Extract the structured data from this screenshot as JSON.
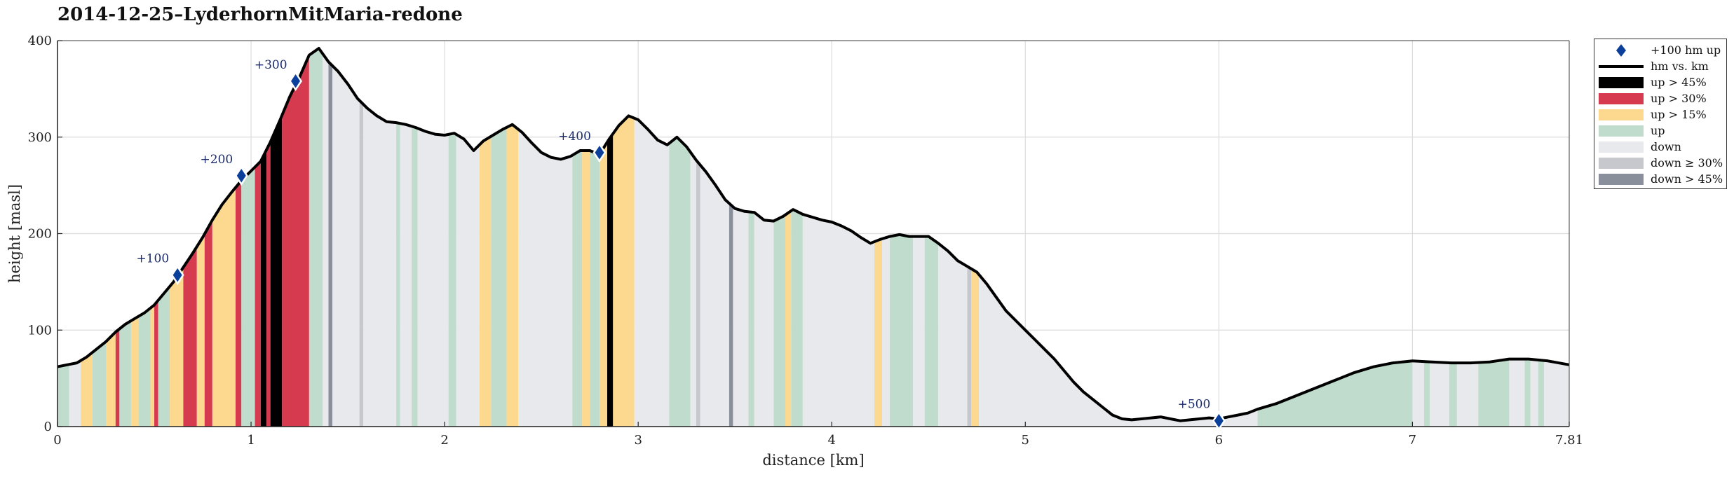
{
  "title": "2014-12-25–LyderhornMitMaria-redone",
  "chart_data": {
    "type": "area",
    "title": "2014-12-25–LyderhornMitMaria-redone",
    "xlabel": "distance [km]",
    "ylabel": "height [masl]",
    "xlim": [
      0,
      7.81
    ],
    "ylim": [
      0,
      400
    ],
    "x_ticks": [
      "0",
      "1",
      "2",
      "3",
      "4",
      "5",
      "6",
      "7",
      "7.81"
    ],
    "y_ticks": [
      "0",
      "100",
      "200",
      "300",
      "400"
    ],
    "grid": true,
    "legend_position": "outside-right-top",
    "series": [
      {
        "name": "hm vs. km",
        "color": "#000000",
        "x": [
          0,
          0.05,
          0.1,
          0.15,
          0.2,
          0.25,
          0.3,
          0.35,
          0.4,
          0.45,
          0.5,
          0.55,
          0.6,
          0.65,
          0.7,
          0.75,
          0.8,
          0.85,
          0.9,
          0.95,
          1.0,
          1.05,
          1.1,
          1.15,
          1.2,
          1.25,
          1.3,
          1.35,
          1.4,
          1.45,
          1.5,
          1.55,
          1.6,
          1.65,
          1.7,
          1.75,
          1.8,
          1.85,
          1.9,
          1.95,
          2.0,
          2.05,
          2.1,
          2.15,
          2.2,
          2.25,
          2.3,
          2.35,
          2.4,
          2.45,
          2.5,
          2.55,
          2.6,
          2.65,
          2.7,
          2.75,
          2.8,
          2.85,
          2.9,
          2.95,
          3.0,
          3.05,
          3.1,
          3.15,
          3.2,
          3.25,
          3.3,
          3.35,
          3.4,
          3.45,
          3.5,
          3.55,
          3.6,
          3.65,
          3.7,
          3.75,
          3.8,
          3.85,
          3.9,
          3.95,
          4.0,
          4.05,
          4.1,
          4.15,
          4.2,
          4.25,
          4.3,
          4.35,
          4.4,
          4.45,
          4.5,
          4.55,
          4.6,
          4.65,
          4.7,
          4.75,
          4.8,
          4.85,
          4.9,
          4.95,
          5.0,
          5.05,
          5.1,
          5.15,
          5.2,
          5.25,
          5.3,
          5.35,
          5.4,
          5.45,
          5.5,
          5.55,
          5.6,
          5.65,
          5.7,
          5.75,
          5.8,
          5.85,
          5.9,
          5.95,
          6.0,
          6.05,
          6.1,
          6.15,
          6.2,
          6.3,
          6.4,
          6.5,
          6.6,
          6.7,
          6.8,
          6.9,
          7.0,
          7.1,
          7.2,
          7.3,
          7.4,
          7.5,
          7.6,
          7.7,
          7.81
        ],
        "y": [
          62,
          64,
          66,
          72,
          80,
          88,
          98,
          106,
          112,
          118,
          126,
          138,
          150,
          165,
          180,
          196,
          214,
          230,
          243,
          255,
          265,
          275,
          295,
          318,
          342,
          362,
          385,
          392,
          378,
          368,
          355,
          340,
          330,
          322,
          316,
          315,
          313,
          310,
          306,
          303,
          302,
          304,
          298,
          286,
          296,
          302,
          308,
          313,
          305,
          294,
          284,
          279,
          277,
          280,
          286,
          286,
          282,
          298,
          312,
          322,
          318,
          308,
          297,
          292,
          300,
          290,
          276,
          264,
          250,
          235,
          226,
          223,
          222,
          214,
          213,
          218,
          225,
          220,
          217,
          214,
          212,
          208,
          203,
          196,
          190,
          194,
          197,
          199,
          197,
          197,
          197,
          190,
          182,
          172,
          166,
          160,
          148,
          134,
          120,
          110,
          100,
          90,
          80,
          70,
          58,
          46,
          36,
          28,
          20,
          12,
          8,
          7,
          8,
          9,
          10,
          8,
          6,
          7,
          8,
          9,
          8,
          10,
          12,
          14,
          18,
          24,
          32,
          40,
          48,
          56,
          62,
          66,
          68,
          67,
          66,
          66,
          67,
          70,
          70,
          68,
          64
        ]
      },
      {
        "name": "+100 hm up",
        "color": "#0b3f9c",
        "type": "scatter",
        "x": [
          0.62,
          0.95,
          1.23,
          2.8,
          6.0
        ],
        "y": [
          157,
          260,
          358,
          284,
          6
        ],
        "labels": [
          "+100",
          "+200",
          "+300",
          "+400",
          "+500"
        ]
      }
    ],
    "bands": [
      {
        "from": 0.0,
        "to": 0.06,
        "category": "up"
      },
      {
        "from": 0.06,
        "to": 0.12,
        "category": "down"
      },
      {
        "from": 0.12,
        "to": 0.18,
        "category": "up > 15%"
      },
      {
        "from": 0.18,
        "to": 0.25,
        "category": "up"
      },
      {
        "from": 0.25,
        "to": 0.3,
        "category": "up > 15%"
      },
      {
        "from": 0.3,
        "to": 0.32,
        "category": "up > 30%"
      },
      {
        "from": 0.32,
        "to": 0.38,
        "category": "up"
      },
      {
        "from": 0.38,
        "to": 0.42,
        "category": "up > 15%"
      },
      {
        "from": 0.42,
        "to": 0.48,
        "category": "up"
      },
      {
        "from": 0.48,
        "to": 0.5,
        "category": "up > 15%"
      },
      {
        "from": 0.5,
        "to": 0.52,
        "category": "up > 30%"
      },
      {
        "from": 0.52,
        "to": 0.58,
        "category": "up"
      },
      {
        "from": 0.58,
        "to": 0.65,
        "category": "up > 15%"
      },
      {
        "from": 0.65,
        "to": 0.72,
        "category": "up > 30%"
      },
      {
        "from": 0.72,
        "to": 0.76,
        "category": "up > 15%"
      },
      {
        "from": 0.76,
        "to": 0.8,
        "category": "up > 30%"
      },
      {
        "from": 0.8,
        "to": 0.92,
        "category": "up > 15%"
      },
      {
        "from": 0.92,
        "to": 0.95,
        "category": "up > 30%"
      },
      {
        "from": 0.95,
        "to": 1.02,
        "category": "up"
      },
      {
        "from": 1.02,
        "to": 1.05,
        "category": "up > 30%"
      },
      {
        "from": 1.05,
        "to": 1.08,
        "category": "up > 45%"
      },
      {
        "from": 1.08,
        "to": 1.1,
        "category": "up > 30%"
      },
      {
        "from": 1.1,
        "to": 1.16,
        "category": "up > 45%"
      },
      {
        "from": 1.16,
        "to": 1.3,
        "category": "up > 30%"
      },
      {
        "from": 1.3,
        "to": 1.37,
        "category": "up"
      },
      {
        "from": 1.37,
        "to": 1.4,
        "category": "down"
      },
      {
        "from": 1.4,
        "to": 1.42,
        "category": "down > 45%"
      },
      {
        "from": 1.42,
        "to": 1.56,
        "category": "down"
      },
      {
        "from": 1.56,
        "to": 1.58,
        "category": "down ≥ 30%"
      },
      {
        "from": 1.58,
        "to": 1.75,
        "category": "down"
      },
      {
        "from": 1.75,
        "to": 1.77,
        "category": "up"
      },
      {
        "from": 1.77,
        "to": 1.83,
        "category": "down"
      },
      {
        "from": 1.83,
        "to": 1.86,
        "category": "up"
      },
      {
        "from": 1.86,
        "to": 2.02,
        "category": "down"
      },
      {
        "from": 2.02,
        "to": 2.06,
        "category": "up"
      },
      {
        "from": 2.06,
        "to": 2.18,
        "category": "down"
      },
      {
        "from": 2.18,
        "to": 2.24,
        "category": "up > 15%"
      },
      {
        "from": 2.24,
        "to": 2.32,
        "category": "up"
      },
      {
        "from": 2.32,
        "to": 2.38,
        "category": "up > 15%"
      },
      {
        "from": 2.38,
        "to": 2.66,
        "category": "down"
      },
      {
        "from": 2.66,
        "to": 2.71,
        "category": "up"
      },
      {
        "from": 2.71,
        "to": 2.75,
        "category": "up > 15%"
      },
      {
        "from": 2.75,
        "to": 2.8,
        "category": "up"
      },
      {
        "from": 2.8,
        "to": 2.84,
        "category": "up > 15%"
      },
      {
        "from": 2.84,
        "to": 2.87,
        "category": "up > 45%"
      },
      {
        "from": 2.87,
        "to": 2.98,
        "category": "up > 15%"
      },
      {
        "from": 2.98,
        "to": 3.16,
        "category": "down"
      },
      {
        "from": 3.16,
        "to": 3.27,
        "category": "up"
      },
      {
        "from": 3.27,
        "to": 3.3,
        "category": "down"
      },
      {
        "from": 3.3,
        "to": 3.32,
        "category": "down ≥ 30%"
      },
      {
        "from": 3.32,
        "to": 3.47,
        "category": "down"
      },
      {
        "from": 3.47,
        "to": 3.49,
        "category": "down > 45%"
      },
      {
        "from": 3.49,
        "to": 3.57,
        "category": "down"
      },
      {
        "from": 3.57,
        "to": 3.6,
        "category": "up"
      },
      {
        "from": 3.6,
        "to": 3.7,
        "category": "down"
      },
      {
        "from": 3.7,
        "to": 3.76,
        "category": "up"
      },
      {
        "from": 3.76,
        "to": 3.79,
        "category": "up > 15%"
      },
      {
        "from": 3.79,
        "to": 3.85,
        "category": "up"
      },
      {
        "from": 3.85,
        "to": 4.22,
        "category": "down"
      },
      {
        "from": 4.22,
        "to": 4.26,
        "category": "up > 15%"
      },
      {
        "from": 4.26,
        "to": 4.3,
        "category": "down"
      },
      {
        "from": 4.3,
        "to": 4.42,
        "category": "up"
      },
      {
        "from": 4.42,
        "to": 4.48,
        "category": "down"
      },
      {
        "from": 4.48,
        "to": 4.55,
        "category": "up"
      },
      {
        "from": 4.55,
        "to": 4.7,
        "category": "down"
      },
      {
        "from": 4.7,
        "to": 4.72,
        "category": "down ≥ 30%"
      },
      {
        "from": 4.72,
        "to": 4.76,
        "category": "up > 15%"
      },
      {
        "from": 4.76,
        "to": 6.2,
        "category": "down"
      },
      {
        "from": 6.2,
        "to": 7.0,
        "category": "up"
      },
      {
        "from": 7.0,
        "to": 7.06,
        "category": "down"
      },
      {
        "from": 7.06,
        "to": 7.09,
        "category": "up"
      },
      {
        "from": 7.09,
        "to": 7.19,
        "category": "down"
      },
      {
        "from": 7.19,
        "to": 7.23,
        "category": "up"
      },
      {
        "from": 7.23,
        "to": 7.34,
        "category": "down"
      },
      {
        "from": 7.34,
        "to": 7.5,
        "category": "up"
      },
      {
        "from": 7.5,
        "to": 7.58,
        "category": "down"
      },
      {
        "from": 7.58,
        "to": 7.61,
        "category": "up"
      },
      {
        "from": 7.61,
        "to": 7.65,
        "category": "down"
      },
      {
        "from": 7.65,
        "to": 7.68,
        "category": "up"
      },
      {
        "from": 7.68,
        "to": 7.81,
        "category": "down"
      }
    ],
    "legend": [
      {
        "label": "+100 hm up",
        "symbol": "diamond",
        "color": "#0b3f9c"
      },
      {
        "label": "hm vs. km",
        "symbol": "line",
        "color": "#000000"
      },
      {
        "label": "up > 45%",
        "symbol": "patch",
        "color": "#000000"
      },
      {
        "label": "up > 30%",
        "symbol": "patch",
        "color": "#d63a4f"
      },
      {
        "label": "up > 15%",
        "symbol": "patch",
        "color": "#fcd98e"
      },
      {
        "label": "up",
        "symbol": "patch",
        "color": "#c0dccc"
      },
      {
        "label": "down",
        "symbol": "patch",
        "color": "#e8e9ec"
      },
      {
        "label": "down ≥ 30%",
        "symbol": "patch",
        "color": "#c6c8cd"
      },
      {
        "label": "down > 45%",
        "symbol": "patch",
        "color": "#8a8f9c"
      }
    ]
  }
}
